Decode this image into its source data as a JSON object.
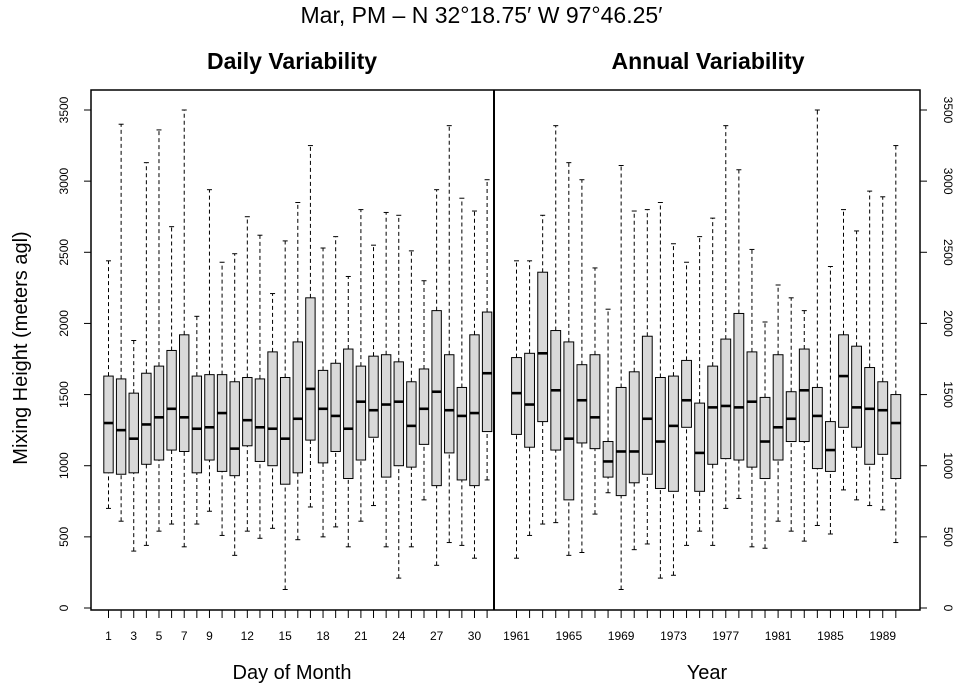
{
  "title": "Mar, PM – N 32°18.75′ W 97°46.25′",
  "chart_data": [
    {
      "type": "boxplot",
      "title": "Daily Variability",
      "xlabel": "Day of Month",
      "ylabel": "Mixing Height (meters agl)",
      "ylim": [
        0,
        3500
      ],
      "yticks": [
        0,
        500,
        1000,
        1500,
        2000,
        2500,
        3000,
        3500
      ],
      "tick_labels": [
        "1",
        "3",
        "5",
        "7",
        "9",
        "12",
        "15",
        "18",
        "21",
        "24",
        "27",
        "30"
      ],
      "x": [
        1,
        2,
        3,
        4,
        5,
        6,
        7,
        8,
        9,
        10,
        11,
        12,
        13,
        14,
        15,
        16,
        17,
        18,
        19,
        20,
        21,
        22,
        23,
        24,
        25,
        26,
        27,
        28,
        29,
        30,
        31
      ],
      "boxes": [
        {
          "min": 700,
          "q1": 950,
          "median": 1300,
          "q3": 1630,
          "max": 2440
        },
        {
          "min": 610,
          "q1": 940,
          "median": 1250,
          "q3": 1610,
          "max": 3400
        },
        {
          "min": 400,
          "q1": 950,
          "median": 1190,
          "q3": 1510,
          "max": 1880
        },
        {
          "min": 440,
          "q1": 1010,
          "median": 1290,
          "q3": 1650,
          "max": 3130
        },
        {
          "min": 540,
          "q1": 1040,
          "median": 1340,
          "q3": 1700,
          "max": 3360
        },
        {
          "min": 590,
          "q1": 1110,
          "median": 1400,
          "q3": 1810,
          "max": 2680
        },
        {
          "min": 430,
          "q1": 1100,
          "median": 1340,
          "q3": 1920,
          "max": 3500
        },
        {
          "min": 590,
          "q1": 950,
          "median": 1260,
          "q3": 1630,
          "max": 2050
        },
        {
          "min": 680,
          "q1": 1040,
          "median": 1270,
          "q3": 1640,
          "max": 2940
        },
        {
          "min": 510,
          "q1": 960,
          "median": 1370,
          "q3": 1640,
          "max": 2430
        },
        {
          "min": 370,
          "q1": 930,
          "median": 1120,
          "q3": 1590,
          "max": 2490
        },
        {
          "min": 540,
          "q1": 1140,
          "median": 1320,
          "q3": 1620,
          "max": 2750
        },
        {
          "min": 490,
          "q1": 1030,
          "median": 1270,
          "q3": 1610,
          "max": 2620
        },
        {
          "min": 560,
          "q1": 1000,
          "median": 1260,
          "q3": 1800,
          "max": 2210
        },
        {
          "min": 130,
          "q1": 870,
          "median": 1190,
          "q3": 1620,
          "max": 2580
        },
        {
          "min": 480,
          "q1": 950,
          "median": 1330,
          "q3": 1870,
          "max": 2850
        },
        {
          "min": 710,
          "q1": 1180,
          "median": 1540,
          "q3": 2180,
          "max": 3250
        },
        {
          "min": 500,
          "q1": 1020,
          "median": 1400,
          "q3": 1670,
          "max": 2530
        },
        {
          "min": 570,
          "q1": 1100,
          "median": 1350,
          "q3": 1720,
          "max": 2610
        },
        {
          "min": 430,
          "q1": 910,
          "median": 1260,
          "q3": 1820,
          "max": 2330
        },
        {
          "min": 610,
          "q1": 1040,
          "median": 1450,
          "q3": 1700,
          "max": 2800
        },
        {
          "min": 720,
          "q1": 1200,
          "median": 1390,
          "q3": 1770,
          "max": 2550
        },
        {
          "min": 430,
          "q1": 920,
          "median": 1430,
          "q3": 1780,
          "max": 2780
        },
        {
          "min": 210,
          "q1": 1000,
          "median": 1450,
          "q3": 1730,
          "max": 2760
        },
        {
          "min": 430,
          "q1": 990,
          "median": 1280,
          "q3": 1590,
          "max": 2510
        },
        {
          "min": 760,
          "q1": 1150,
          "median": 1400,
          "q3": 1680,
          "max": 2300
        },
        {
          "min": 300,
          "q1": 860,
          "median": 1520,
          "q3": 2090,
          "max": 2940
        },
        {
          "min": 460,
          "q1": 1090,
          "median": 1390,
          "q3": 1780,
          "max": 3390
        },
        {
          "min": 440,
          "q1": 900,
          "median": 1350,
          "q3": 1550,
          "max": 2880
        },
        {
          "min": 350,
          "q1": 860,
          "median": 1370,
          "q3": 1920,
          "max": 2790
        },
        {
          "min": 900,
          "q1": 1240,
          "median": 1650,
          "q3": 2080,
          "max": 3010
        }
      ]
    },
    {
      "type": "boxplot",
      "title": "Annual Variability",
      "xlabel": "Year",
      "ylim": [
        0,
        3500
      ],
      "yticks": [
        0,
        500,
        1000,
        1500,
        2000,
        2500,
        3000,
        3500
      ],
      "tick_labels": [
        "1961",
        "1965",
        "1969",
        "1973",
        "1977",
        "1981",
        "1985",
        "1989"
      ],
      "x": [
        1961,
        1962,
        1963,
        1964,
        1965,
        1966,
        1967,
        1968,
        1969,
        1970,
        1971,
        1972,
        1973,
        1974,
        1975,
        1976,
        1977,
        1978,
        1979,
        1980,
        1981,
        1982,
        1983,
        1984,
        1985,
        1986,
        1987,
        1988,
        1989,
        1990
      ],
      "boxes": [
        {
          "min": 350,
          "q1": 1220,
          "median": 1510,
          "q3": 1760,
          "max": 2440
        },
        {
          "min": 510,
          "q1": 1130,
          "median": 1430,
          "q3": 1790,
          "max": 2440
        },
        {
          "min": 590,
          "q1": 1310,
          "median": 1790,
          "q3": 2360,
          "max": 2760
        },
        {
          "min": 600,
          "q1": 1110,
          "median": 1530,
          "q3": 1950,
          "max": 3390
        },
        {
          "min": 370,
          "q1": 760,
          "median": 1190,
          "q3": 1870,
          "max": 3130
        },
        {
          "min": 390,
          "q1": 1160,
          "median": 1460,
          "q3": 1710,
          "max": 3010
        },
        {
          "min": 660,
          "q1": 1120,
          "median": 1340,
          "q3": 1780,
          "max": 2390
        },
        {
          "min": 810,
          "q1": 920,
          "median": 1030,
          "q3": 1170,
          "max": 2100
        },
        {
          "min": 130,
          "q1": 790,
          "median": 1100,
          "q3": 1550,
          "max": 3110
        },
        {
          "min": 410,
          "q1": 880,
          "median": 1100,
          "q3": 1660,
          "max": 2790
        },
        {
          "min": 450,
          "q1": 940,
          "median": 1330,
          "q3": 1910,
          "max": 2800
        },
        {
          "min": 210,
          "q1": 840,
          "median": 1170,
          "q3": 1620,
          "max": 2850
        },
        {
          "min": 230,
          "q1": 820,
          "median": 1280,
          "q3": 1630,
          "max": 2560
        },
        {
          "min": 440,
          "q1": 1270,
          "median": 1460,
          "q3": 1740,
          "max": 2430
        },
        {
          "min": 540,
          "q1": 820,
          "median": 1090,
          "q3": 1440,
          "max": 2610
        },
        {
          "min": 440,
          "q1": 1010,
          "median": 1410,
          "q3": 1700,
          "max": 2740
        },
        {
          "min": 700,
          "q1": 1050,
          "median": 1420,
          "q3": 1890,
          "max": 3390
        },
        {
          "min": 770,
          "q1": 1040,
          "median": 1410,
          "q3": 2070,
          "max": 3080
        },
        {
          "min": 430,
          "q1": 990,
          "median": 1450,
          "q3": 1800,
          "max": 2520
        },
        {
          "min": 420,
          "q1": 910,
          "median": 1170,
          "q3": 1480,
          "max": 2010
        },
        {
          "min": 610,
          "q1": 1040,
          "median": 1270,
          "q3": 1780,
          "max": 2270
        },
        {
          "min": 540,
          "q1": 1170,
          "median": 1330,
          "q3": 1520,
          "max": 2180
        },
        {
          "min": 470,
          "q1": 1170,
          "median": 1530,
          "q3": 1820,
          "max": 2090
        },
        {
          "min": 580,
          "q1": 980,
          "median": 1350,
          "q3": 1550,
          "max": 3500
        },
        {
          "min": 520,
          "q1": 960,
          "median": 1110,
          "q3": 1310,
          "max": 2400
        },
        {
          "min": 830,
          "q1": 1270,
          "median": 1630,
          "q3": 1920,
          "max": 2800
        },
        {
          "min": 760,
          "q1": 1130,
          "median": 1410,
          "q3": 1840,
          "max": 2650
        },
        {
          "min": 720,
          "q1": 1010,
          "median": 1400,
          "q3": 1690,
          "max": 2930
        },
        {
          "min": 690,
          "q1": 1080,
          "median": 1390,
          "q3": 1590,
          "max": 2890
        },
        {
          "min": 460,
          "q1": 910,
          "median": 1300,
          "q3": 1500,
          "max": 3250
        }
      ]
    }
  ],
  "colors": {
    "box_fill": "#d9d9d9",
    "stroke": "#000000"
  }
}
